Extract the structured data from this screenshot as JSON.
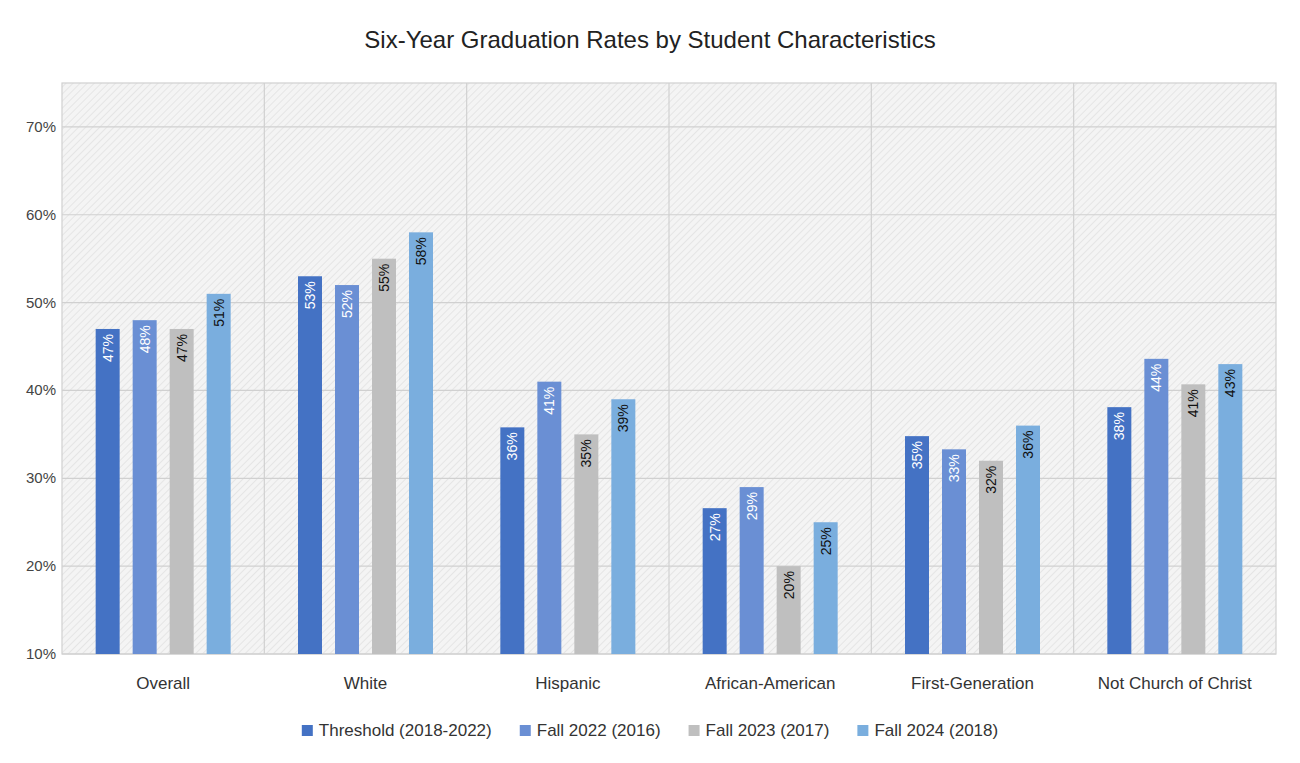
{
  "chart_data": {
    "type": "bar",
    "title": "Six-Year Graduation Rates by Student Characteristics",
    "categories": [
      "Overall",
      "White",
      "Hispanic",
      "African-American",
      "First-Generation",
      "Not Church of Christ"
    ],
    "series": [
      {
        "name": "Threshold (2018-2022)",
        "color": "#4472c4",
        "values": [
          47,
          53,
          35.8,
          26.6,
          34.8,
          38.1
        ],
        "value_labels": [
          "47%",
          "53%",
          "36%",
          "27%",
          "35%",
          "38%"
        ]
      },
      {
        "name": "Fall 2022 (2016)",
        "color": "#6a8fd4",
        "values": [
          48,
          52,
          41,
          29,
          33.3,
          43.6
        ],
        "value_labels": [
          "48%",
          "52%",
          "41%",
          "29%",
          "33%",
          "44%"
        ]
      },
      {
        "name": "Fall 2023 (2017)",
        "color": "#bfbfbf",
        "values": [
          47,
          55,
          35,
          20,
          32,
          40.7
        ],
        "value_labels": [
          "47%",
          "55%",
          "35%",
          "20%",
          "32%",
          "41%"
        ]
      },
      {
        "name": "Fall 2024 (2018)",
        "color": "#7aaede",
        "values": [
          51,
          58,
          39,
          25,
          36,
          43
        ],
        "value_labels": [
          "51%",
          "58%",
          "39%",
          "25%",
          "36%",
          "43%"
        ]
      }
    ],
    "ylim": [
      10,
      75
    ],
    "yticks": [
      {
        "value": 10,
        "label": "10%"
      },
      {
        "value": 20,
        "label": "20%"
      },
      {
        "value": 30,
        "label": "30%"
      },
      {
        "value": 40,
        "label": "40%"
      },
      {
        "value": 50,
        "label": "50%"
      },
      {
        "value": 60,
        "label": "60%"
      },
      {
        "value": 70,
        "label": "70%"
      }
    ],
    "grid": true,
    "legend": "bottom",
    "data_labels": true
  }
}
